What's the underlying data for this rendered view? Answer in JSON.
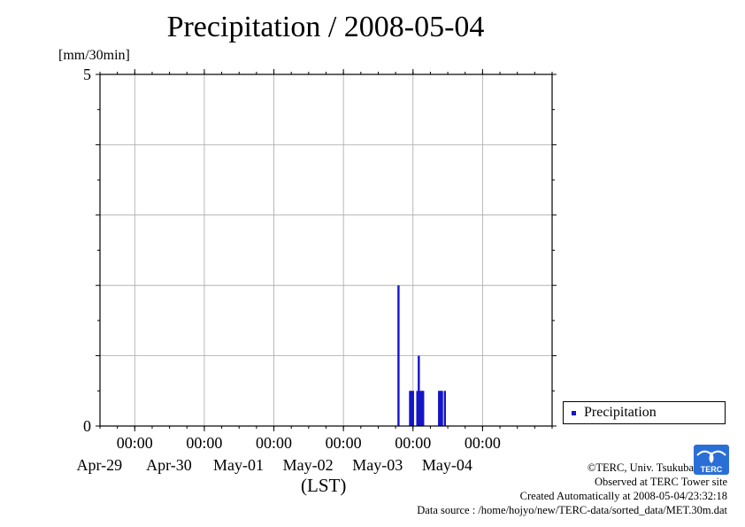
{
  "chart_data": {
    "type": "bar",
    "title": "Precipitation / 2008-05-04",
    "ylabel": "[mm/30min]",
    "xlabel": "(LST)",
    "ylim": [
      0,
      5
    ],
    "y_ticks": [
      "0",
      "5"
    ],
    "xlim": [
      "2008-04-28 12:00",
      "2008-05-04 24:00"
    ],
    "x_ticks": [
      {
        "time": "00:00",
        "date": "Apr-29"
      },
      {
        "time": "00:00",
        "date": "Apr-30"
      },
      {
        "time": "00:00",
        "date": "May-01"
      },
      {
        "time": "00:00",
        "date": "May-02"
      },
      {
        "time": "00:00",
        "date": "May-03"
      },
      {
        "time": "00:00",
        "date": "May-04"
      }
    ],
    "grid": true,
    "legend_position": "right",
    "series": [
      {
        "name": "Precipitation",
        "color": "#1414c8",
        "points": [
          {
            "x": "2008-05-02 19:00",
            "y": 2.0
          },
          {
            "x": "2008-05-02 23:00",
            "y": 0.5
          },
          {
            "x": "2008-05-02 23:30",
            "y": 0.5
          },
          {
            "x": "2008-05-03 00:00",
            "y": 0.5
          },
          {
            "x": "2008-05-03 01:30",
            "y": 0.5
          },
          {
            "x": "2008-05-03 02:00",
            "y": 1.0
          },
          {
            "x": "2008-05-03 02:30",
            "y": 0.5
          },
          {
            "x": "2008-05-03 03:00",
            "y": 0.5
          },
          {
            "x": "2008-05-03 03:30",
            "y": 0.5
          },
          {
            "x": "2008-05-03 09:00",
            "y": 0.5
          },
          {
            "x": "2008-05-03 09:30",
            "y": 0.5
          },
          {
            "x": "2008-05-03 10:00",
            "y": 0.5
          },
          {
            "x": "2008-05-03 11:00",
            "y": 0.5
          }
        ]
      }
    ]
  },
  "credits": {
    "copyright": "©TERC, Univ. Tsukuba",
    "observed": "Observed at TERC Tower site",
    "created": "Created Automatically at 2008-05-04/23:32:18",
    "source": "Data source : /home/hojyo/new/TERC-data/sorted_data/MET.30m.dat",
    "logo_text": "TERC"
  }
}
